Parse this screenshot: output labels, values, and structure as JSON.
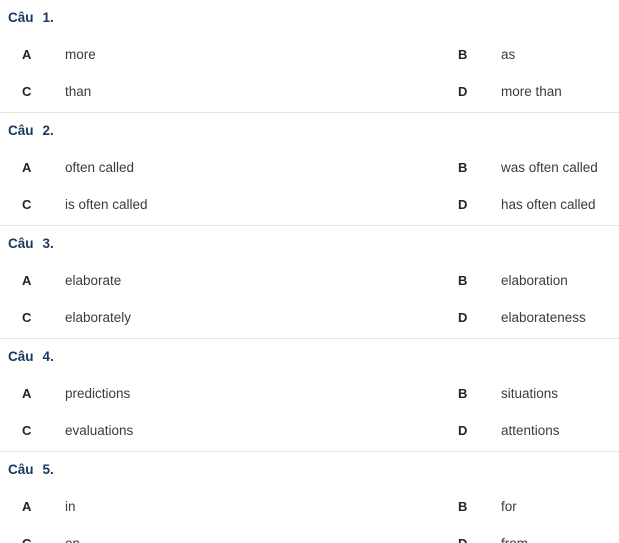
{
  "page": {
    "title_color": "#17375d",
    "letter_color": "#212529",
    "text_color": "#3b3b3b",
    "divider_color": "#e4e4e4"
  },
  "questions": [
    {
      "label": "Câu",
      "number": "1.",
      "options": [
        {
          "letter": "A",
          "text": "more"
        },
        {
          "letter": "B",
          "text": "as"
        },
        {
          "letter": "C",
          "text": "than"
        },
        {
          "letter": "D",
          "text": "more than"
        }
      ]
    },
    {
      "label": "Câu",
      "number": "2.",
      "options": [
        {
          "letter": "A",
          "text": "often called"
        },
        {
          "letter": "B",
          "text": "was often called"
        },
        {
          "letter": "C",
          "text": "is often called"
        },
        {
          "letter": "D",
          "text": "has often called"
        }
      ]
    },
    {
      "label": "Câu",
      "number": "3.",
      "options": [
        {
          "letter": "A",
          "text": "elaborate"
        },
        {
          "letter": "B",
          "text": "elaboration"
        },
        {
          "letter": "C",
          "text": "elaborately"
        },
        {
          "letter": "D",
          "text": "elaborateness"
        }
      ]
    },
    {
      "label": "Câu",
      "number": "4.",
      "options": [
        {
          "letter": "A",
          "text": "predictions"
        },
        {
          "letter": "B",
          "text": "situations"
        },
        {
          "letter": "C",
          "text": "evaluations"
        },
        {
          "letter": "D",
          "text": "attentions"
        }
      ]
    },
    {
      "label": "Câu",
      "number": "5.",
      "options": [
        {
          "letter": "A",
          "text": "in"
        },
        {
          "letter": "B",
          "text": "for"
        },
        {
          "letter": "C",
          "text": "on"
        },
        {
          "letter": "D",
          "text": "from"
        }
      ]
    }
  ]
}
